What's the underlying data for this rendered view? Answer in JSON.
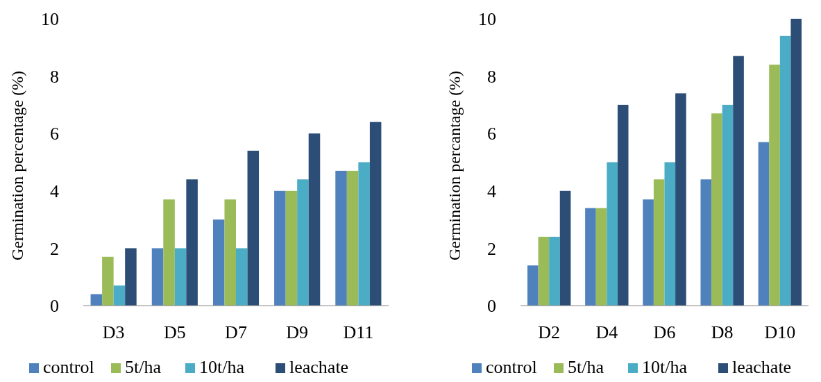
{
  "chart_data": [
    {
      "type": "bar",
      "ylabel": "Germination percentage (%)",
      "categories": [
        "D3",
        "D5",
        "D7",
        "D9",
        "D11"
      ],
      "series": [
        {
          "name": "control",
          "color": "#4f81bd",
          "values": [
            0.4,
            2.0,
            3.0,
            4.0,
            4.7
          ]
        },
        {
          "name": "5t/ha",
          "color": "#9bbb59",
          "values": [
            1.7,
            3.7,
            3.7,
            4.0,
            4.7
          ]
        },
        {
          "name": "10t/ha",
          "color": "#4bacc6",
          "values": [
            0.7,
            2.0,
            2.0,
            4.4,
            5.0
          ]
        },
        {
          "name": "leachate",
          "color": "#2c4d75",
          "values": [
            2.0,
            4.4,
            5.4,
            6.0,
            6.4
          ]
        }
      ],
      "ylim": [
        0,
        10
      ],
      "yticks": [
        0,
        2,
        4,
        6,
        8,
        10
      ],
      "legend": "bottom"
    },
    {
      "type": "bar",
      "ylabel": "Germination percantage (%)",
      "categories": [
        "D2",
        "D4",
        "D6",
        "D8",
        "D10"
      ],
      "series": [
        {
          "name": "control",
          "color": "#4f81bd",
          "values": [
            1.4,
            3.4,
            3.7,
            4.4,
            5.7
          ]
        },
        {
          "name": "5t/ha",
          "color": "#9bbb59",
          "values": [
            2.4,
            3.4,
            4.4,
            6.7,
            8.4
          ]
        },
        {
          "name": "10t/ha",
          "color": "#4bacc6",
          "values": [
            2.4,
            5.0,
            5.0,
            7.0,
            9.4
          ]
        },
        {
          "name": "leachate",
          "color": "#2c4d75",
          "values": [
            4.0,
            7.0,
            7.4,
            8.7,
            10.0
          ]
        }
      ],
      "ylim": [
        0,
        10
      ],
      "yticks": [
        0,
        2,
        4,
        6,
        8,
        10
      ],
      "legend": "bottom"
    }
  ]
}
